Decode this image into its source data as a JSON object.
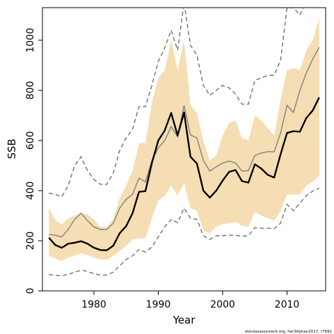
{
  "chart_data": {
    "type": "line",
    "xlabel": "Year",
    "ylabel": "SSB",
    "xlim": [
      1972,
      2016
    ],
    "ylim": [
      0,
      1130
    ],
    "x_ticks": [
      1980,
      1990,
      2000,
      2010
    ],
    "y_ticks": [
      0,
      200,
      400,
      600,
      800,
      1000
    ],
    "grid": false,
    "footnote": "stockassessment.org, her30phan2017, r7692",
    "colors": {
      "band": "#f5deb3",
      "main": "#000000",
      "secondary": "#808080",
      "dashed": "#707070"
    },
    "x": [
      1973,
      1974,
      1975,
      1976,
      1977,
      1978,
      1979,
      1980,
      1981,
      1982,
      1983,
      1984,
      1985,
      1986,
      1987,
      1988,
      1989,
      1990,
      1991,
      1992,
      1993,
      1994,
      1995,
      1996,
      1997,
      1998,
      1999,
      2000,
      2001,
      2002,
      2003,
      2004,
      2005,
      2006,
      2007,
      2008,
      2009,
      2010,
      2011,
      2012,
      2013,
      2014,
      2015
    ],
    "series": [
      {
        "role": "estimate",
        "values": [
          212,
          183,
          172,
          188,
          192,
          198,
          188,
          172,
          163,
          162,
          180,
          230,
          258,
          310,
          395,
          398,
          510,
          600,
          640,
          710,
          620,
          712,
          535,
          508,
          400,
          372,
          400,
          440,
          475,
          482,
          438,
          432,
          505,
          488,
          463,
          452,
          545,
          630,
          637,
          635,
          690,
          720,
          772
        ]
      },
      {
        "role": "estimate-gray",
        "values": [
          225,
          222,
          215,
          245,
          285,
          310,
          280,
          255,
          245,
          245,
          270,
          330,
          365,
          385,
          450,
          435,
          520,
          570,
          600,
          655,
          615,
          740,
          622,
          610,
          520,
          478,
          495,
          510,
          518,
          510,
          478,
          480,
          540,
          550,
          555,
          555,
          630,
          740,
          712,
          800,
          870,
          925,
          972
        ]
      },
      {
        "role": "band-upper",
        "values": [
          330,
          283,
          265,
          290,
          300,
          310,
          305,
          285,
          255,
          255,
          285,
          370,
          420,
          480,
          590,
          590,
          750,
          850,
          880,
          1000,
          880,
          1000,
          740,
          710,
          600,
          520,
          540,
          620,
          670,
          680,
          610,
          600,
          700,
          680,
          650,
          620,
          760,
          880,
          890,
          880,
          960,
          1000,
          1090
        ]
      },
      {
        "role": "band-lower",
        "values": [
          138,
          130,
          120,
          133,
          140,
          150,
          143,
          132,
          125,
          125,
          138,
          160,
          180,
          205,
          210,
          210,
          290,
          360,
          380,
          420,
          380,
          430,
          330,
          320,
          240,
          230,
          255,
          265,
          270,
          275,
          260,
          255,
          315,
          300,
          290,
          280,
          320,
          385,
          383,
          385,
          420,
          435,
          460
        ]
      },
      {
        "role": "dashed-upper",
        "values": [
          390,
          385,
          375,
          420,
          500,
          535,
          480,
          445,
          425,
          425,
          470,
          560,
          610,
          645,
          735,
          735,
          820,
          915,
          970,
          1040,
          960,
          1150,
          980,
          940,
          820,
          780,
          800,
          820,
          810,
          785,
          745,
          745,
          840,
          850,
          860,
          860,
          920,
          1130,
          1130,
          1100,
          1160,
          1190,
          1210
        ]
      },
      {
        "role": "dashed-lower",
        "values": [
          65,
          62,
          60,
          65,
          75,
          82,
          78,
          68,
          63,
          63,
          75,
          100,
          125,
          140,
          165,
          155,
          175,
          215,
          255,
          285,
          272,
          330,
          290,
          285,
          220,
          205,
          220,
          220,
          222,
          222,
          218,
          220,
          252,
          250,
          250,
          248,
          270,
          345,
          320,
          350,
          380,
          398,
          410
        ]
      }
    ]
  }
}
